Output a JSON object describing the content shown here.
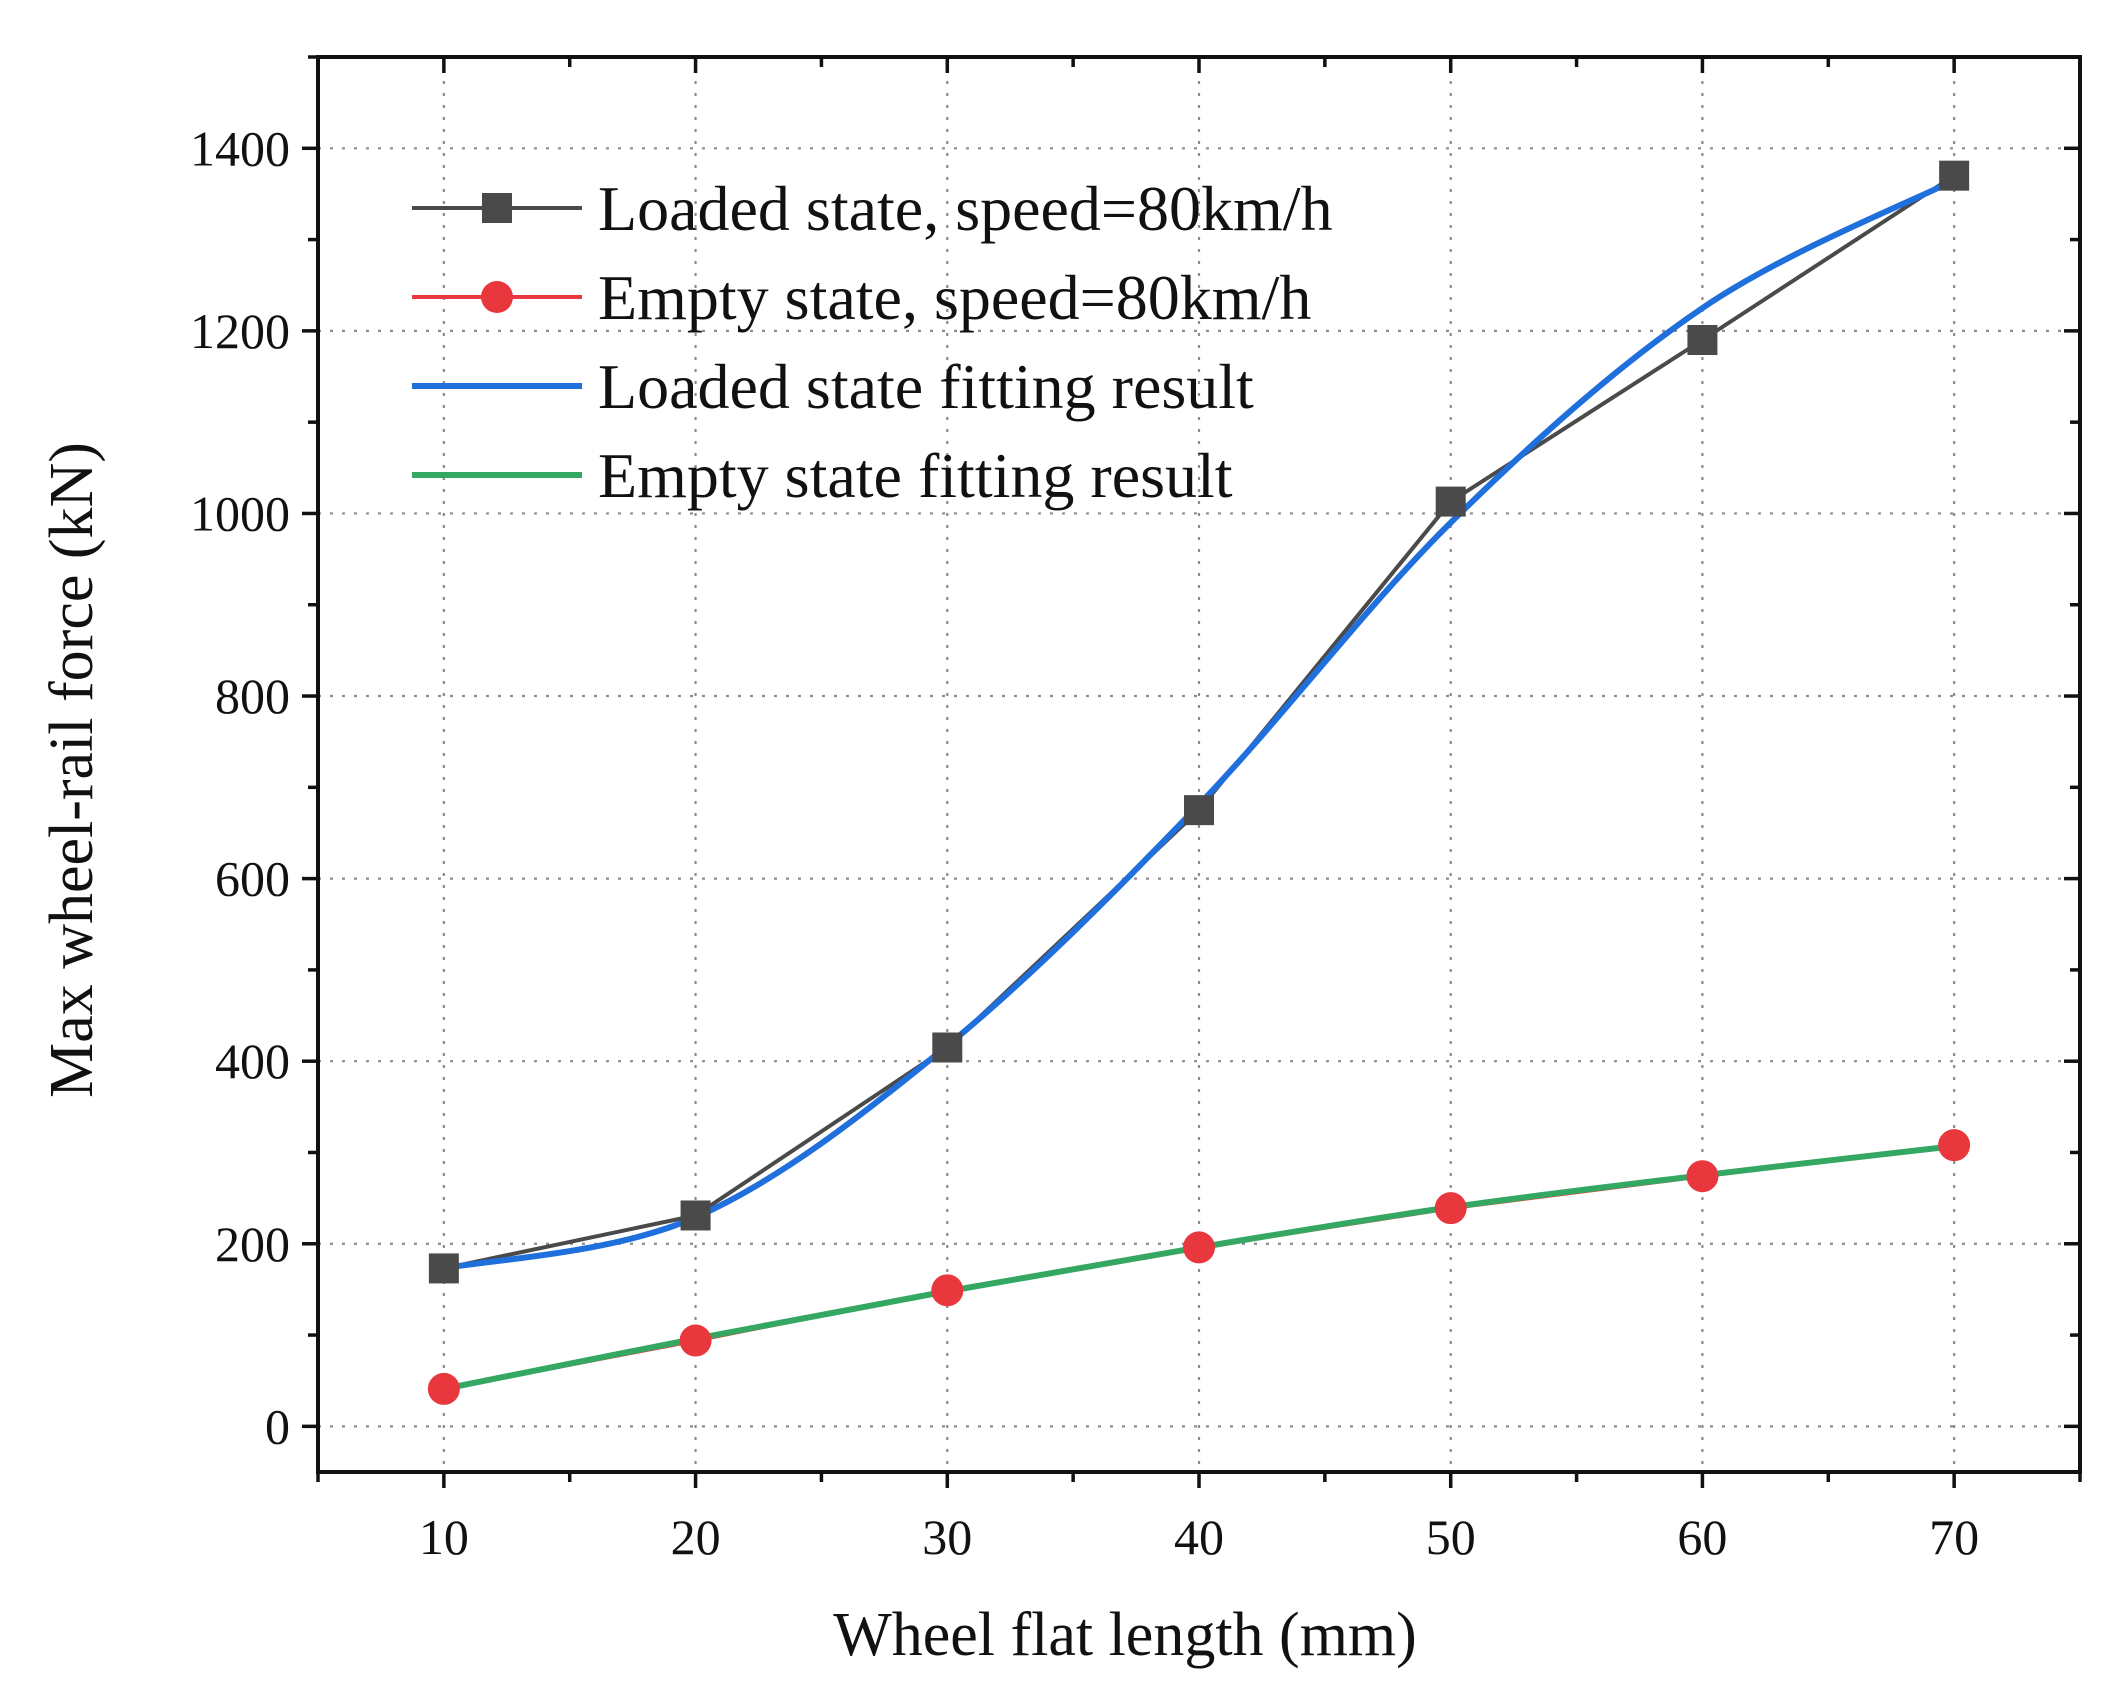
{
  "chart_data": {
    "type": "line",
    "title": "",
    "xlabel": "Wheel flat length  (mm)",
    "ylabel": "Max wheel-rail force (kN)",
    "xlim": [
      5,
      75
    ],
    "ylim": [
      -50,
      1500
    ],
    "x_ticks": [
      10,
      20,
      30,
      40,
      50,
      60,
      70
    ],
    "y_ticks": [
      0,
      200,
      400,
      600,
      800,
      1000,
      1200,
      1400
    ],
    "grid": true,
    "legend_position": "top-left",
    "x": [
      10,
      20,
      30,
      40,
      50,
      60,
      70
    ],
    "series": [
      {
        "name": "Loaded state, speed=80km/h",
        "kind": "markers-line",
        "marker": "square",
        "color": "#4a4a4a",
        "values": [
          173,
          231,
          415,
          675,
          1013,
          1190,
          1370
        ]
      },
      {
        "name": "Empty state, speed=80km/h",
        "kind": "markers-line",
        "marker": "circle",
        "color": "#e8383d",
        "values": [
          41,
          94,
          149,
          196,
          239,
          274,
          308
        ]
      },
      {
        "name": "Loaded state fitting result",
        "kind": "fit",
        "color": "#1f6fdc",
        "values": [
          173,
          229,
          417,
          681,
          990,
          1225,
          1365
        ]
      },
      {
        "name": "Empty state fitting result",
        "kind": "fit",
        "color": "#34a862",
        "values": [
          41,
          96,
          148,
          196,
          240,
          275,
          307
        ]
      }
    ]
  }
}
